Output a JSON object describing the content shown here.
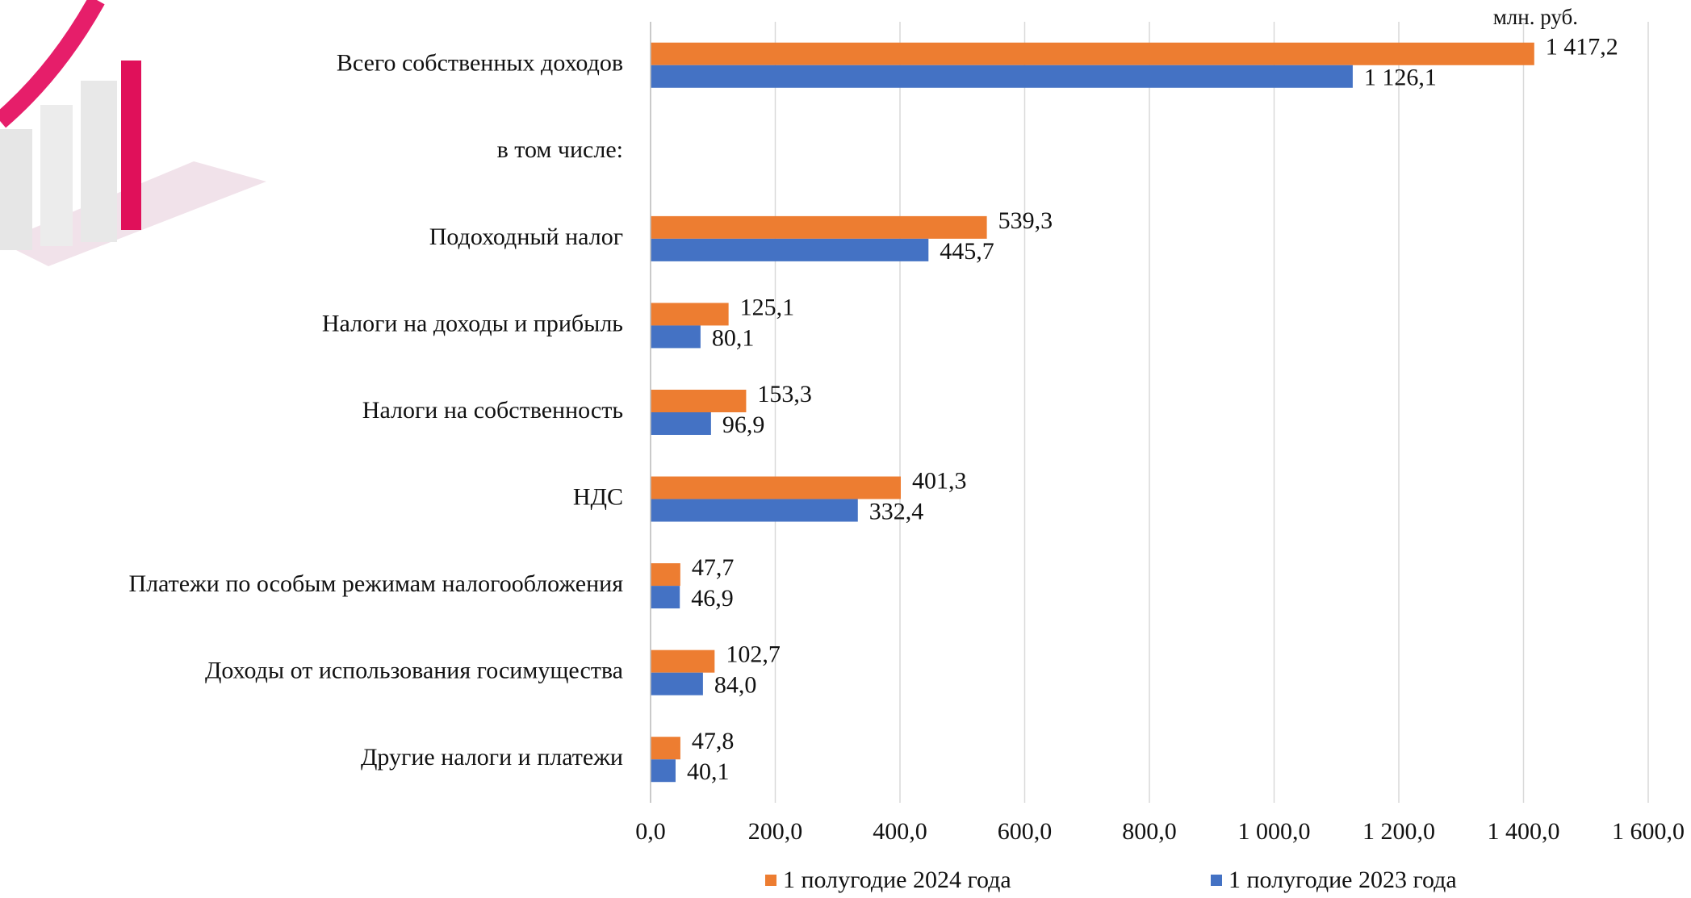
{
  "chart_data": {
    "type": "bar",
    "orientation": "horizontal",
    "unit_label": "млн. руб.",
    "categories": [
      "Всего собственных доходов",
      "в том числе:",
      "Подоходный налог",
      "Налоги на доходы и прибыль",
      "Налоги на собственность",
      "НДС",
      "Платежи по особым режимам налогообложения",
      "Доходы от использования госимущества",
      "Другие налоги и платежи"
    ],
    "series": [
      {
        "name": "1 полугодие 2024 года",
        "color": "#ed7d31",
        "values": [
          1417.2,
          null,
          539.3,
          125.1,
          153.3,
          401.3,
          47.7,
          102.7,
          47.8
        ],
        "value_labels": [
          "1 417,2",
          null,
          "539,3",
          "125,1",
          "153,3",
          "401,3",
          "47,7",
          "102,7",
          "47,8"
        ]
      },
      {
        "name": "1 полугодие 2023 года",
        "color": "#4472c4",
        "values": [
          1126.1,
          null,
          445.7,
          80.1,
          96.9,
          332.4,
          46.9,
          84.0,
          40.1
        ],
        "value_labels": [
          "1 126,1",
          null,
          "445,7",
          "80,1",
          "96,9",
          "332,4",
          "46,9",
          "84,0",
          "40,1"
        ]
      }
    ],
    "xlim": [
      0,
      1600
    ],
    "xticks": [
      {
        "value": 0,
        "label": "0,0"
      },
      {
        "value": 200,
        "label": "200,0"
      },
      {
        "value": 400,
        "label": "400,0"
      },
      {
        "value": 600,
        "label": "600,0"
      },
      {
        "value": 800,
        "label": "800,0"
      },
      {
        "value": 1000,
        "label": "1 000,0"
      },
      {
        "value": 1200,
        "label": "1 200,0"
      },
      {
        "value": 1400,
        "label": "1 400,0"
      },
      {
        "value": 1600,
        "label": "1 600,0"
      }
    ],
    "grid": true,
    "legend": "bottom"
  }
}
